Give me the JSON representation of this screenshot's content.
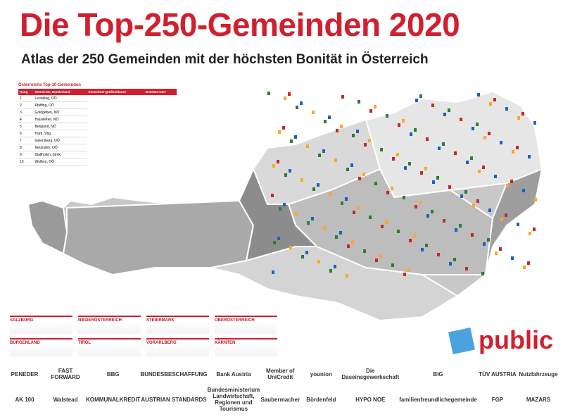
{
  "header": {
    "title": "Die Top-250-Gemeinden 2020",
    "subtitle": "Atlas der 250 Gemeinden mit der höchsten Bonität in Österreich"
  },
  "table": {
    "title": "Österreichs Top-10-Gemeinden",
    "columns": [
      "Rang",
      "Gemeinde, Bundesland",
      "Einwohner-größenklasse",
      "Bonitäts-wert"
    ],
    "rows": [
      [
        "1",
        "Leonding, OÖ"
      ],
      [
        "2",
        "Pfaffing, OÖ"
      ],
      [
        "3",
        "Goldgeben, NÖ"
      ],
      [
        "4",
        "Hausleiten, NÖ"
      ],
      [
        "5",
        "Bergland, NÖ"
      ],
      [
        "6",
        "Hard, Vbg."
      ],
      [
        "7",
        "Geiersberg, OÖ"
      ],
      [
        "8",
        "Neuhofen, OÖ"
      ],
      [
        "9",
        "Stallhofen, Stmk."
      ],
      [
        "10",
        "Wolfern, OÖ"
      ]
    ]
  },
  "legend": {
    "regions": [
      "SALZBURG",
      "NIEDERÖSTERREICH",
      "STEIERMARK",
      "OBERÖSTERREICH",
      "BURGENLAND",
      "TIROL",
      "VORARLBERG",
      "KÄRNTEN"
    ]
  },
  "brand": "public",
  "sponsors": [
    "PENEDER",
    "FAST FORWARD",
    "BBG",
    "BUNDESBESCHAFFUNG",
    "Bank Austria",
    "Member of UniCredit",
    "younion",
    "Die Daseinsgewerkschaft",
    "BIG",
    "TÜV AUSTRIA",
    "Nutzfahrzeuge",
    "AK 100",
    "Walstead",
    "KOMMUNALKREDIT",
    "AUSTRIAN STANDARDS",
    "Bundesministerium Landwirtschaft, Regionen und Tourismus",
    "Saubermacher",
    "Bördenfeld",
    "HYPO NOE",
    "familienfreundlichegemeinde",
    "FGP",
    "MAZARS"
  ]
}
